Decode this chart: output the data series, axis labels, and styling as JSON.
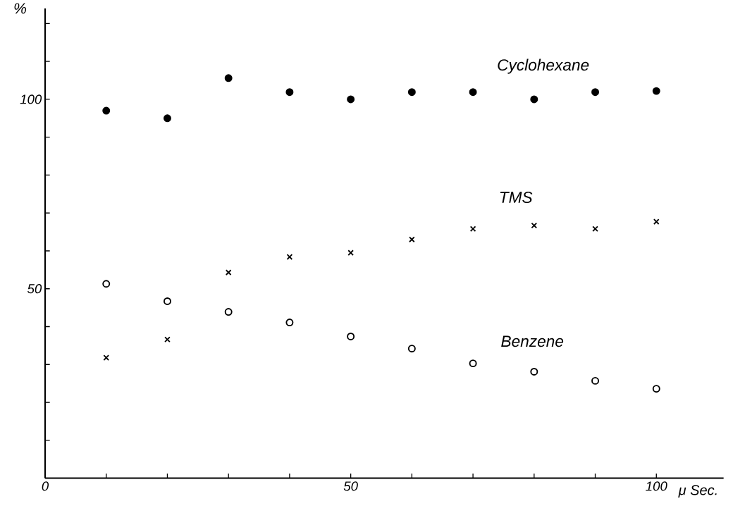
{
  "chart_data": {
    "type": "scatter",
    "xlabel": "μ Sec.",
    "ylabel": "%",
    "x": [
      10,
      20,
      30,
      40,
      50,
      60,
      70,
      80,
      90,
      100
    ],
    "series": [
      {
        "name": "Cyclohexane",
        "color": "#000000",
        "marker": "circle",
        "values": [
          97.0,
          95.0,
          105.6,
          101.9,
          100,
          101.9,
          101.9,
          100,
          101.9,
          102.2
        ]
      },
      {
        "name": "TMS",
        "color": "#000000",
        "marker": "cross",
        "values": [
          31.8,
          36.6,
          54.3,
          58.4,
          59.5,
          63.0,
          65.8,
          66.7,
          65.8,
          67.7
        ]
      },
      {
        "name": "Benzene",
        "color": "#000000",
        "marker": "circle",
        "values": [
          51.3,
          46.7,
          43.9,
          41.1,
          37.4,
          34.2,
          30.3,
          28.1,
          25.7,
          23.6
        ]
      }
    ],
    "xlim": [
      0,
      111
    ],
    "ylim": [
      0,
      124
    ],
    "xticks": [
      0,
      {
        "value": 10,
        "label": null
      },
      {
        "value": 20,
        "label": null
      },
      {
        "value": 30,
        "label": null
      },
      {
        "value": 40,
        "label": null
      },
      50,
      {
        "value": 60,
        "label": null
      },
      {
        "value": 70,
        "label": null
      },
      {
        "value": 80,
        "label": null
      },
      {
        "value": 90,
        "label": null
      },
      100
    ],
    "yticks": [
      {
        "value": 10,
        "label": null
      },
      {
        "value": 20,
        "label": null
      },
      {
        "value": 30,
        "label": null
      },
      {
        "value": 40,
        "label": null
      },
      50,
      {
        "value": 60,
        "label": null
      },
      {
        "value": 70,
        "label": null
      },
      {
        "value": 80,
        "label": null
      },
      {
        "value": 90,
        "label": null
      },
      100,
      {
        "value": 110,
        "label": null
      },
      {
        "value": 120,
        "label": null
      }
    ],
    "grid": false
  }
}
